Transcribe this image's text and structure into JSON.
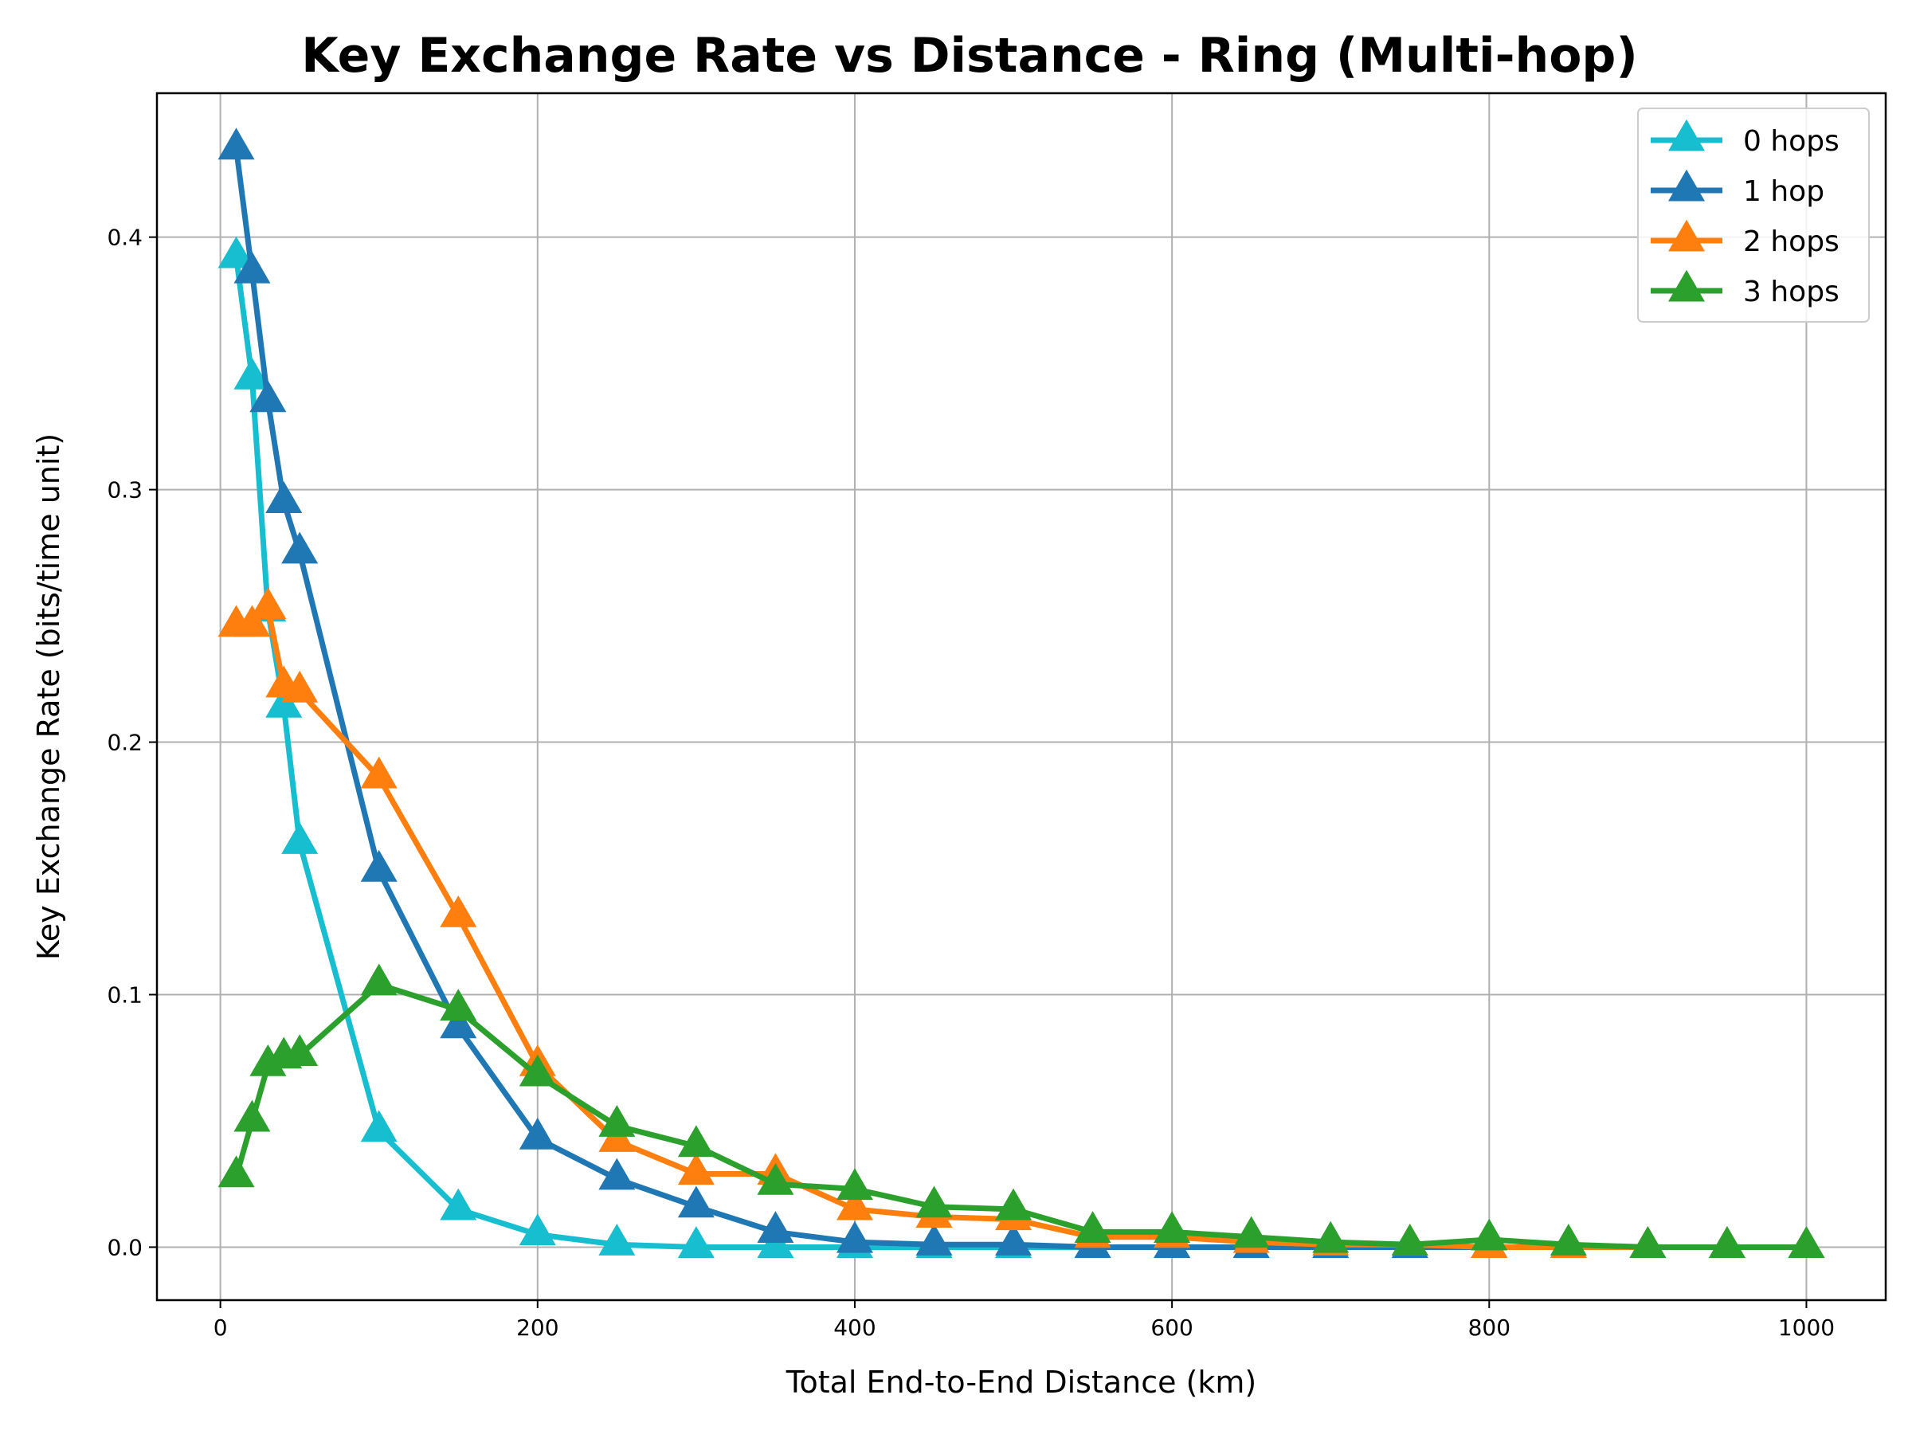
{
  "chart_data": {
    "type": "line",
    "title": "Key Exchange Rate vs Distance - Ring (Multi-hop)",
    "xlabel": "Total End-to-End Distance (km)",
    "ylabel": "Key Exchange Rate (bits/time unit)",
    "xlim": [
      -40,
      1050
    ],
    "ylim": [
      -0.021,
      0.457
    ],
    "x_ticks": [
      0,
      200,
      400,
      600,
      800,
      1000
    ],
    "x_tick_labels": [
      "0",
      "200",
      "400",
      "600",
      "800",
      "1000"
    ],
    "y_ticks": [
      0.0,
      0.1,
      0.2,
      0.3,
      0.4
    ],
    "y_tick_labels": [
      "0.0",
      "0.1",
      "0.2",
      "0.3",
      "0.4"
    ],
    "grid": true,
    "legend_position": "top-right",
    "marker": "triangle-up",
    "series": [
      {
        "name": "0 hops",
        "color": "#17becf",
        "x": [
          10,
          20,
          30,
          40,
          50,
          100,
          150,
          200,
          250,
          300,
          350,
          400,
          450,
          500,
          550,
          600,
          650,
          700,
          750,
          800,
          850,
          900,
          950,
          1000
        ],
        "y": [
          0.392,
          0.344,
          0.252,
          0.214,
          0.16,
          0.046,
          0.015,
          0.005,
          0.001,
          0.0,
          0.0,
          0.0,
          0.0,
          0.0,
          0.0,
          0.0,
          0.0,
          0.0,
          0.0,
          0.0,
          0.0,
          0.0,
          0.0,
          0.0
        ]
      },
      {
        "name": "1 hop",
        "color": "#1f77b4",
        "x": [
          10,
          20,
          30,
          40,
          50,
          100,
          150,
          200,
          250,
          300,
          350,
          400,
          450,
          500,
          550,
          600,
          650,
          700,
          750,
          800,
          850,
          900,
          950,
          1000
        ],
        "y": [
          0.435,
          0.386,
          0.335,
          0.295,
          0.275,
          0.149,
          0.087,
          0.043,
          0.027,
          0.016,
          0.006,
          0.002,
          0.001,
          0.001,
          0.0,
          0.0,
          0.0,
          0.0,
          0.0,
          0.0,
          0.0,
          0.0,
          0.0,
          0.0
        ]
      },
      {
        "name": "2 hops",
        "color": "#ff7f0e",
        "x": [
          10,
          20,
          30,
          40,
          50,
          100,
          150,
          200,
          250,
          300,
          350,
          400,
          450,
          500,
          550,
          600,
          650,
          700,
          750,
          800,
          850,
          900,
          950,
          1000
        ],
        "y": [
          0.246,
          0.246,
          0.253,
          0.222,
          0.22,
          0.186,
          0.131,
          0.072,
          0.042,
          0.029,
          0.029,
          0.015,
          0.012,
          0.011,
          0.004,
          0.004,
          0.002,
          0.001,
          0.001,
          0.0,
          0.0,
          0.0,
          0.0,
          0.0
        ]
      },
      {
        "name": "3 hops",
        "color": "#2ca02c",
        "x": [
          10,
          20,
          30,
          40,
          50,
          100,
          150,
          200,
          250,
          300,
          350,
          400,
          450,
          500,
          550,
          600,
          650,
          700,
          750,
          800,
          850,
          900,
          950,
          1000
        ],
        "y": [
          0.028,
          0.05,
          0.072,
          0.075,
          0.076,
          0.104,
          0.094,
          0.068,
          0.048,
          0.04,
          0.025,
          0.023,
          0.016,
          0.015,
          0.006,
          0.006,
          0.004,
          0.002,
          0.001,
          0.003,
          0.001,
          0.0,
          0.0,
          0.0
        ]
      }
    ]
  }
}
